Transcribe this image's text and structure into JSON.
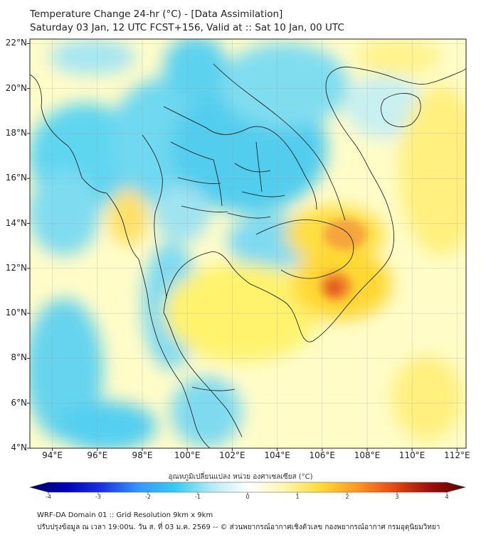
{
  "header": {
    "title_line1": "Temperature Change 24-hr (°C) - [Data Assimilation]",
    "title_line2": "Saturday 03 Jan, 12 UTC FCST+156, Valid at :: Sat 10 Jan, 00 UTC"
  },
  "map": {
    "lat_labels": [
      "22°N",
      "20°N",
      "18°N",
      "16°N",
      "14°N",
      "12°N",
      "10°N",
      "8°N",
      "6°N",
      "4°N"
    ],
    "lat_values": [
      22,
      20,
      18,
      16,
      14,
      12,
      10,
      8,
      6,
      4
    ],
    "lon_labels": [
      "94°E",
      "96°E",
      "98°E",
      "100°E",
      "102°E",
      "104°E",
      "106°E",
      "108°E",
      "110°E",
      "112°E"
    ],
    "lon_values": [
      94,
      96,
      98,
      100,
      102,
      104,
      106,
      108,
      110,
      112
    ],
    "extent": {
      "lon_min": 93,
      "lon_max": 112.4,
      "lat_min": 4,
      "lat_max": 22.2
    },
    "colors": {
      "background_warm": "#fffcc8",
      "cool": "#33ccee",
      "warm": "#ffd21e",
      "hot": "#e8601a"
    }
  },
  "colorbar": {
    "title": "อุณหภูมิเปลี่ยนแปลง หน่วย องศาเซลเซียส (°C)",
    "ticks": [
      "-4",
      "-3",
      "-2",
      "-1",
      "0",
      "1",
      "2",
      "3",
      "4"
    ],
    "range": [
      -4,
      4
    ],
    "stops": [
      "#000066",
      "#0000bb",
      "#1a33e6",
      "#3399ff",
      "#33ccf2",
      "#b3ebf5",
      "#ffffff",
      "#fff6b0",
      "#ffdd33",
      "#ff9922",
      "#e84a10",
      "#a0100a",
      "#5a0000"
    ]
  },
  "footer": {
    "line1": "WRF-DA Domain 01 :: Grid Resolution 9km x 9km",
    "line2": "ปรับปรุงข้อมูล ณ เวลา 19:00น. วัน ส. ที่ 03 ม.ค. 2569 -- © ส่วนพยากรณ์อากาศเชิงตัวเลข กองพยากรณ์อากาศ กรมอุตุนิยมวิทยา"
  }
}
